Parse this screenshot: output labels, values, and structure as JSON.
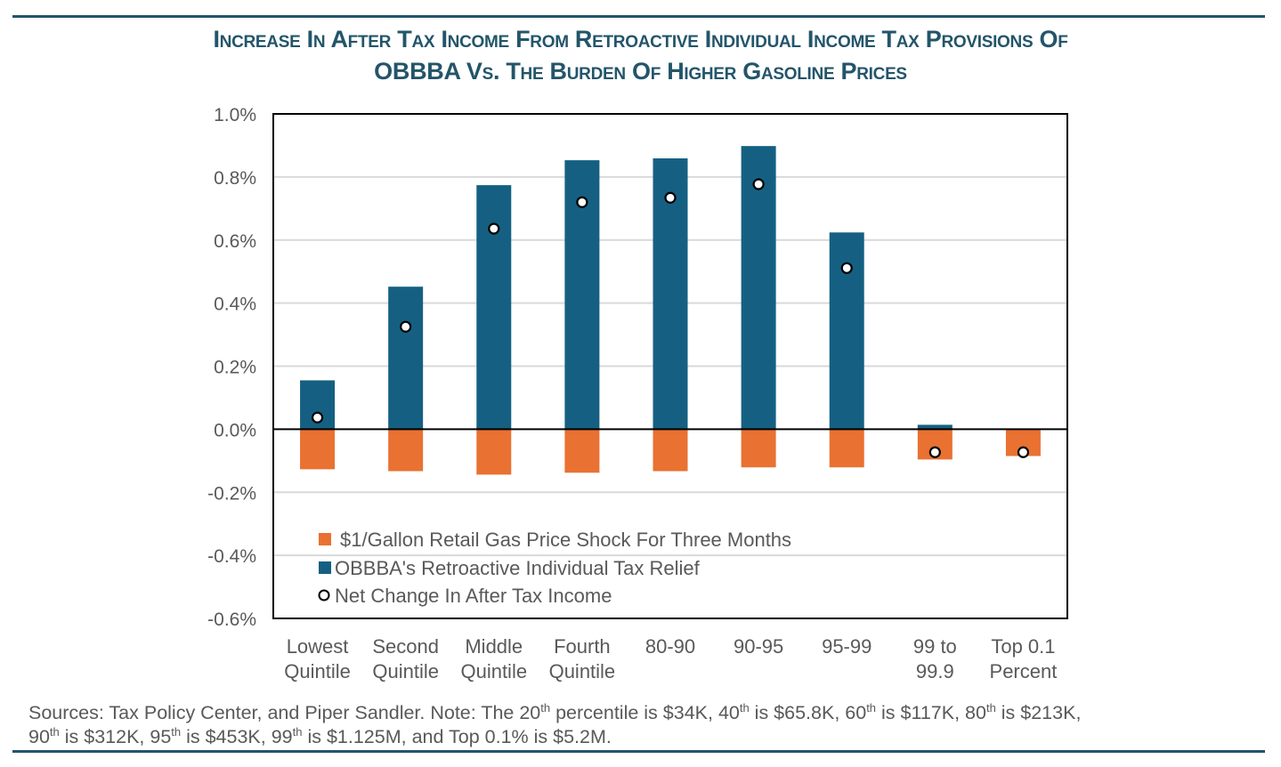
{
  "title": {
    "line1": "Increase In After Tax Income From Retroactive Individual Income Tax Provisions Of",
    "line2": "OBBBA Vs. The Burden Of Higher Gasoline Prices"
  },
  "colors": {
    "header_rule": "#23556a",
    "title": "#23556a",
    "gas_shock": "#e97132",
    "tax_relief": "#156082",
    "net_marker_fill": "#ffffff",
    "net_marker_stroke": "#000000",
    "gridline": "#d9d9d9",
    "text": "#595959"
  },
  "chart_data": {
    "type": "bar",
    "title": "Increase In After Tax Income From Retroactive Individual Income Tax Provisions Of OBBBA Vs. The Burden Of Higher Gasoline Prices",
    "xlabel": "",
    "ylabel": "",
    "categories": [
      [
        "Lowest",
        "Quintile"
      ],
      [
        "Second",
        "Quintile"
      ],
      [
        "Middle",
        "Quintile"
      ],
      [
        "Fourth",
        "Quintile"
      ],
      [
        "80-90"
      ],
      [
        "90-95"
      ],
      [
        "95-99"
      ],
      [
        "99 to",
        "99.9"
      ],
      [
        "Top 0.1",
        "Percent"
      ]
    ],
    "series": [
      {
        "name": "$1/Gallon Retail Gas Price Shock For Three Months",
        "kind": "bar",
        "color": "#e97132",
        "values": [
          -0.127,
          -0.133,
          -0.144,
          -0.138,
          -0.133,
          -0.121,
          -0.121,
          -0.096,
          -0.085
        ]
      },
      {
        "name": "OBBBA's Retroactive Individual Tax Relief",
        "kind": "bar",
        "color": "#156082",
        "values": [
          0.155,
          0.452,
          0.774,
          0.853,
          0.859,
          0.898,
          0.624,
          0.014,
          0.0
        ]
      },
      {
        "name": "Net Change In After Tax Income",
        "kind": "marker",
        "color": "#ffffff",
        "values": [
          0.037,
          0.325,
          0.636,
          0.72,
          0.734,
          0.777,
          0.511,
          -0.073,
          -0.073
        ]
      }
    ],
    "yticks": [
      "1.0%",
      "0.8%",
      "0.6%",
      "0.4%",
      "0.2%",
      "0.0%",
      "-0.2%",
      "-0.4%",
      "-0.6%"
    ],
    "ytick_values": [
      1.0,
      0.8,
      0.6,
      0.4,
      0.2,
      0.0,
      -0.2,
      -0.4,
      -0.6
    ],
    "ylim": [
      -0.6,
      1.0
    ],
    "unit": "percent",
    "grid": true,
    "legend_position": "bottom-left inside plot"
  },
  "footer": {
    "line1_parts": [
      "Sources: Tax Policy Center, and Piper Sandler. Note: The 20",
      "th",
      " percentile is $34K, 40",
      "th",
      " is $65.8K, 60",
      "th",
      " is $117K, 80",
      "th",
      " is $213K,"
    ],
    "line2_parts": [
      "90",
      "th",
      " is $312K, 95",
      "th",
      " is $453K, 99",
      "th",
      " is $1.125M, and Top 0.1% is $5.2M."
    ]
  }
}
